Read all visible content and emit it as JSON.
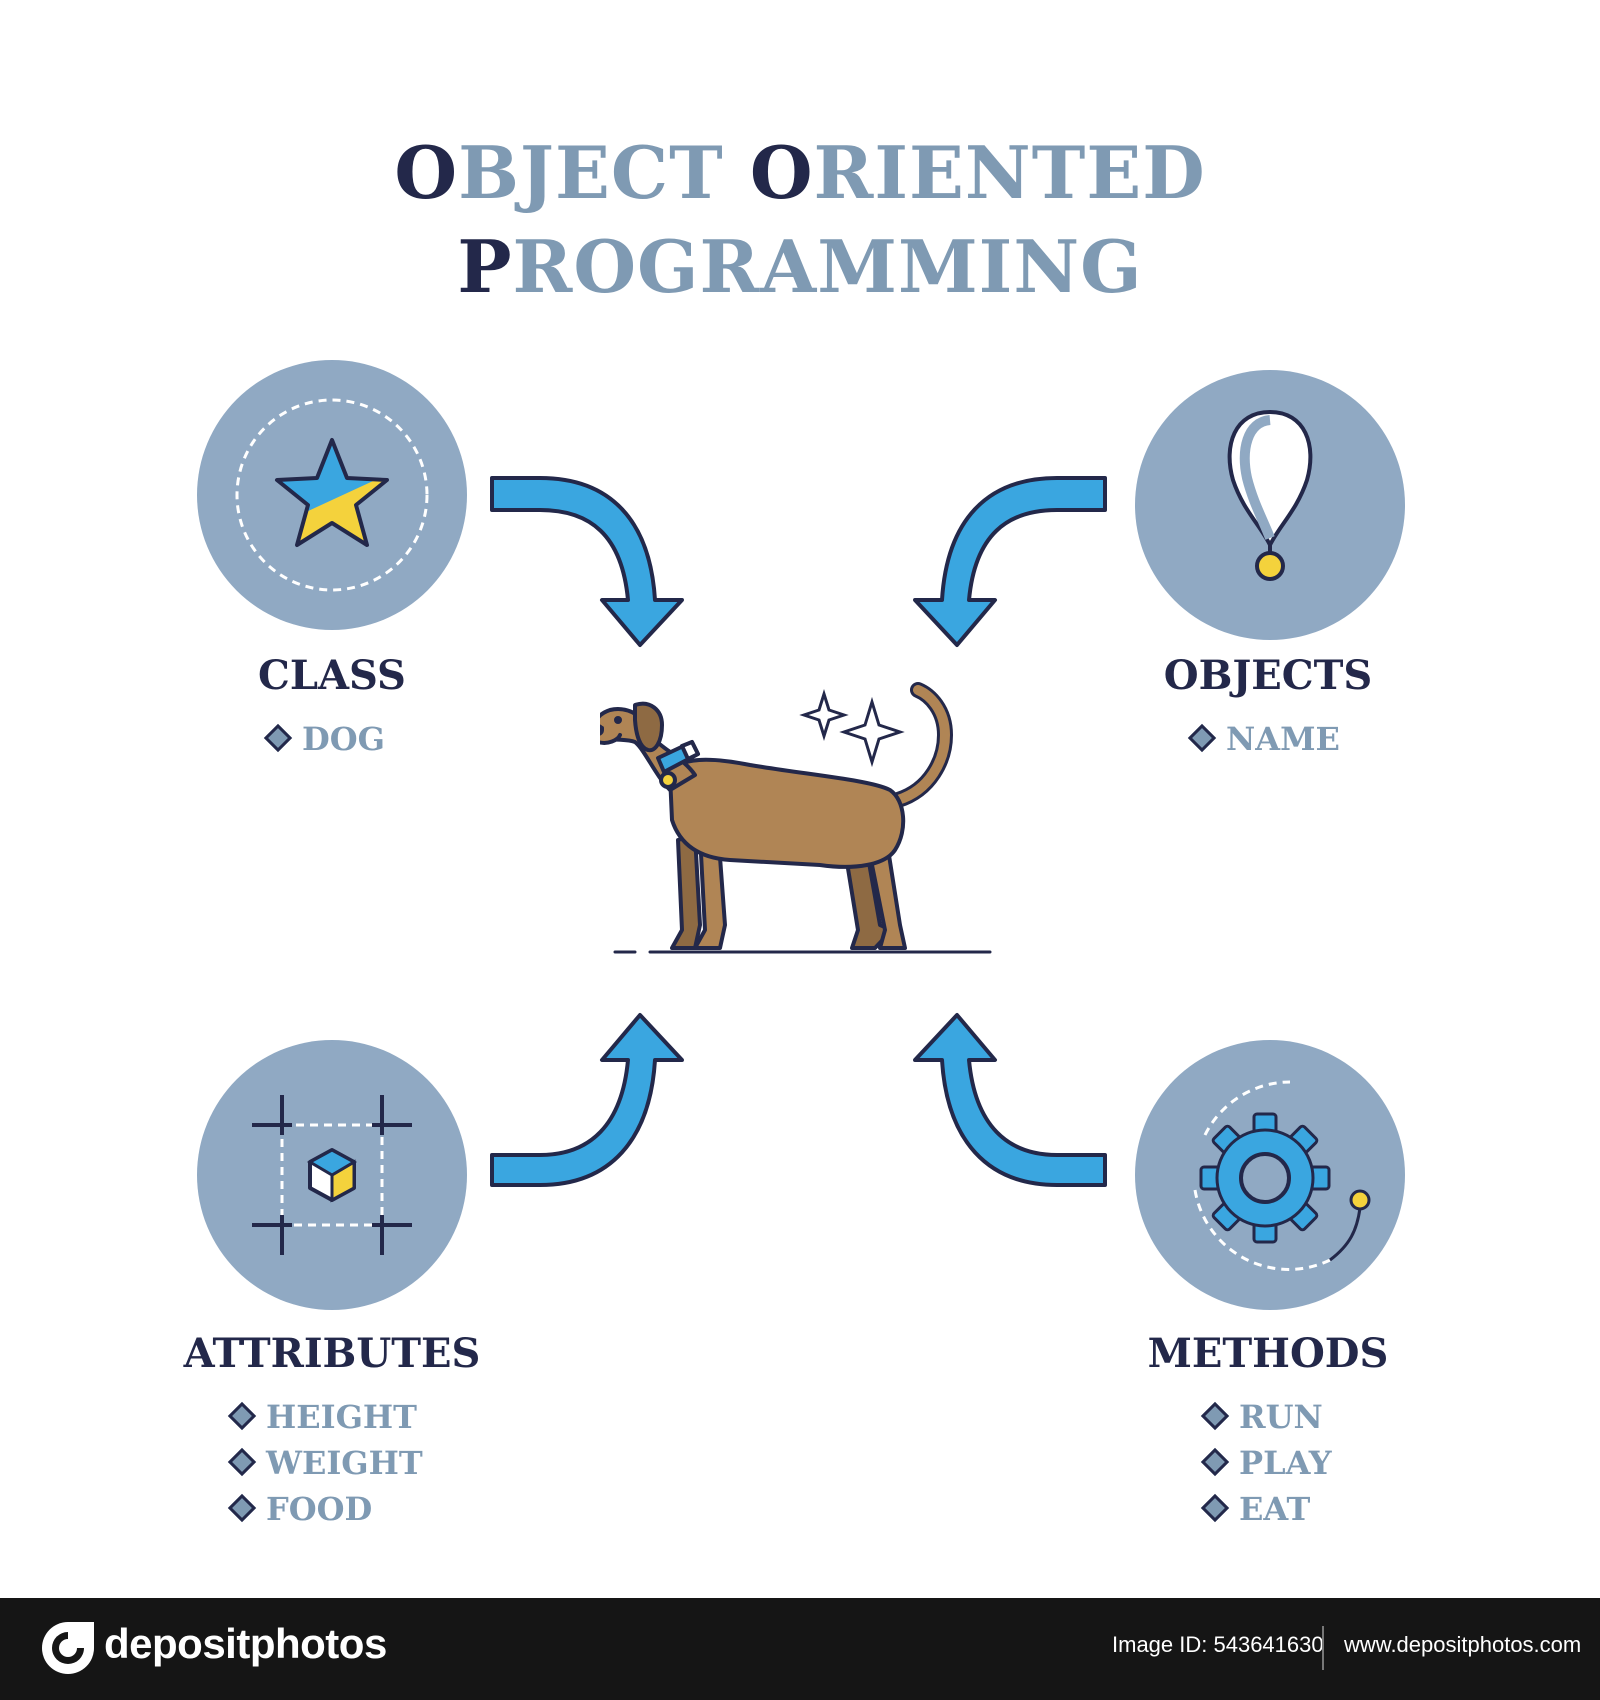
{
  "title": {
    "line1": [
      {
        "cap": "O",
        "rest": "BJECT "
      },
      {
        "cap": "O",
        "rest": "RIENTED"
      }
    ],
    "line2": [
      {
        "cap": "P",
        "rest": "ROGRAMMING"
      }
    ]
  },
  "concepts": {
    "class": {
      "label": "CLASS",
      "items": [
        "DOG"
      ],
      "icon": "star-icon"
    },
    "objects": {
      "label": "OBJECTS",
      "items": [
        "NAME"
      ],
      "icon": "name-tag-icon"
    },
    "attributes": {
      "label": "ATTRIBUTES",
      "items": [
        "HEIGHT",
        "WEIGHT",
        "FOOD"
      ],
      "icon": "cube-frame-icon"
    },
    "methods": {
      "label": "METHODS",
      "items": [
        "RUN",
        "PLAY",
        "EAT"
      ],
      "icon": "gear-icon"
    }
  },
  "center": {
    "icon": "dog-icon"
  },
  "colors": {
    "dark_navy": "#23284a",
    "slate_blue": "#7f9ab3",
    "circle_fill": "#90a9c3",
    "arrow_blue": "#3aa6e0",
    "yellow": "#f4d23c",
    "dog_brown": "#b08555"
  },
  "footer": {
    "brand": "depositphotos",
    "image_id": "Image ID: 543641630",
    "url": "www.depositphotos.com"
  }
}
